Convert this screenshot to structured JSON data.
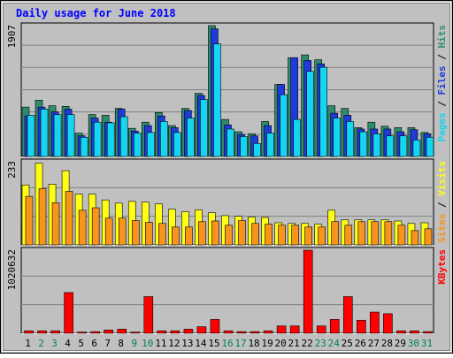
{
  "chart_data": {
    "type": "bar",
    "title": "Daily usage for June 2018",
    "categories": [
      "1",
      "2",
      "3",
      "4",
      "5",
      "6",
      "7",
      "8",
      "9",
      "10",
      "11",
      "12",
      "13",
      "14",
      "15",
      "16",
      "17",
      "18",
      "19",
      "20",
      "21",
      "22",
      "23",
      "24",
      "25",
      "26",
      "27",
      "28",
      "29",
      "30",
      "31"
    ],
    "weekend_days": [
      "2",
      "3",
      "9",
      "10",
      "16",
      "17",
      "23",
      "24",
      "30",
      "31"
    ],
    "panels": [
      {
        "id": "hits",
        "scale_label": "1907",
        "ymax": 1907,
        "series": [
          {
            "name": "Hits",
            "color": "#2e8b6e",
            "values": [
              720,
              820,
              740,
              730,
              340,
              610,
              600,
              700,
              410,
              500,
              640,
              450,
              700,
              920,
              1907,
              540,
              360,
              330,
              510,
              1050,
              1440,
              1480,
              1410,
              740,
              700,
              420,
              500,
              440,
              420,
              420,
              350
            ]
          },
          {
            "name": "Files",
            "color": "#1e3adb",
            "values": [
              590,
              720,
              650,
              690,
              300,
              560,
              500,
              690,
              370,
              450,
              590,
              420,
              670,
              890,
              1860,
              460,
              320,
              300,
              450,
              1050,
              1440,
              1400,
              1350,
              630,
              600,
              400,
              400,
              400,
              360,
              390,
              330
            ]
          },
          {
            "name": "Pages",
            "color": "#14d6f2",
            "values": [
              600,
              690,
              610,
              610,
              280,
              500,
              490,
              580,
              340,
              350,
              510,
              350,
              560,
              830,
              1640,
              400,
              290,
              190,
              340,
              900,
              540,
              1240,
              1300,
              560,
              510,
              360,
              330,
              300,
              300,
              240,
              280
            ]
          }
        ],
        "legend": [
          "Pages",
          "Files",
          "Hits"
        ],
        "legend_colors": [
          "#14d6f2",
          "#1e3adb",
          "#2e8b6e"
        ]
      },
      {
        "id": "visits",
        "scale_label": "233",
        "ymax": 233,
        "series": [
          {
            "name": "Visits",
            "color": "#ffff14",
            "values": [
              168,
              229,
              170,
              208,
              142,
              142,
              126,
              117,
              122,
              120,
              115,
              100,
              93,
              98,
              90,
              82,
              80,
              78,
              77,
              62,
              60,
              60,
              58,
              97,
              70,
              70,
              70,
              70,
              67,
              60,
              62
            ]
          },
          {
            "name": "Sites",
            "color": "#f7941d",
            "values": [
              136,
              158,
              118,
              150,
              97,
              104,
              75,
              75,
              68,
              63,
              60,
              50,
              50,
              65,
              67,
              55,
              68,
              60,
              58,
              55,
              55,
              50,
              50,
              65,
              55,
              65,
              65,
              65,
              55,
              40,
              45
            ]
          }
        ],
        "legend": [
          "Sites",
          "Visits"
        ],
        "legend_colors": [
          "#f7941d",
          "#ffff14"
        ]
      },
      {
        "id": "kbytes",
        "scale_label": "1020632",
        "ymax": 1020632,
        "series": [
          {
            "name": "KBytes",
            "color": "#ff0000",
            "values": [
              30000,
              30000,
              30000,
              500000,
              15000,
              20000,
              40000,
              50000,
              15000,
              450000,
              30000,
              30000,
              50000,
              80000,
              170000,
              30000,
              20000,
              20000,
              30000,
              90000,
              90000,
              1020632,
              90000,
              170000,
              450000,
              160000,
              260000,
              240000,
              30000,
              30000,
              20000
            ]
          }
        ],
        "legend": [
          "KBytes"
        ],
        "legend_colors": [
          "#ff0000"
        ]
      }
    ],
    "xlabel": "",
    "ylabel": "",
    "grid": true
  },
  "colors": {
    "background": "#c0c0c0",
    "title": "#0000ff",
    "plot_bg": "#c0c0c0",
    "weekday_label": "#000000",
    "weekend_label": "#00805c",
    "legend_separator": "#000000"
  }
}
